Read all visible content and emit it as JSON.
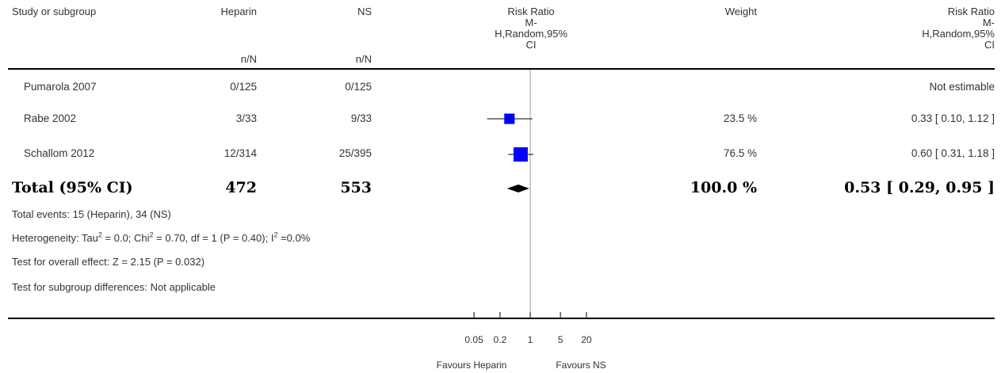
{
  "header": {
    "study": "Study or subgroup",
    "group1": "Heparin",
    "group2": "NS",
    "n_n": "n/N",
    "effect_lines": [
      "Risk Ratio",
      "M-",
      "H,Random,95%",
      "CI"
    ],
    "weight": "Weight",
    "effect_right_lines": [
      "Risk Ratio",
      "M-",
      "H,Random,95%",
      "CI"
    ]
  },
  "studies": [
    {
      "name": "Pumarola 2007",
      "g1": "0/125",
      "g2": "0/125",
      "weight": "",
      "ci_text": "Not estimable"
    },
    {
      "name": "Rabe 2002",
      "g1": "3/33",
      "g2": "9/33",
      "weight": "23.5 %",
      "ci_text": "0.33 [ 0.10, 1.12 ]"
    },
    {
      "name": "Schallom 2012",
      "g1": "12/314",
      "g2": "25/395",
      "weight": "76.5 %",
      "ci_text": "0.60 [ 0.31, 1.18 ]"
    }
  ],
  "total": {
    "label": "Total (95% CI)",
    "g1": "472",
    "g2": "553",
    "weight": "100.0 %",
    "ci_text": "0.53 [ 0.29, 0.95 ]"
  },
  "notes": {
    "events": "Total events: 15 (Heparin), 34 (NS)",
    "heterogeneity_a": "Heterogeneity: Tau",
    "heterogeneity_b": " = 0.0; Chi",
    "heterogeneity_c": " = 0.70, df = 1 (P = 0.40); I",
    "heterogeneity_d": " =0.0%",
    "sup2": "2",
    "overall": "Test for overall effect: Z = 2.15 (P = 0.032)",
    "subgroup": "Test for subgroup differences: Not applicable"
  },
  "axis": {
    "favours_left": "Favours Heparin",
    "favours_right": "Favours NS"
  },
  "colors": {
    "marker": "#0000ff",
    "diamond": "#000000",
    "line": "#000000",
    "null_line": "#9a9a9a"
  },
  "chart_data": {
    "type": "forest",
    "scale": "log",
    "xlim": [
      0.05,
      20
    ],
    "x_ticks": [
      0.05,
      0.2,
      1,
      5,
      20
    ],
    "x_tick_labels": [
      "0.05",
      "0.2",
      "1",
      "5",
      "20"
    ],
    "null_value": 1,
    "studies": [
      {
        "name": "Pumarola 2007",
        "estimate": null,
        "ci_low": null,
        "ci_high": null,
        "weight": null
      },
      {
        "name": "Rabe 2002",
        "estimate": 0.33,
        "ci_low": 0.1,
        "ci_high": 1.12,
        "weight": 23.5
      },
      {
        "name": "Schallom 2012",
        "estimate": 0.6,
        "ci_low": 0.31,
        "ci_high": 1.18,
        "weight": 76.5
      }
    ],
    "pooled": {
      "estimate": 0.53,
      "ci_low": 0.29,
      "ci_high": 0.95
    }
  }
}
